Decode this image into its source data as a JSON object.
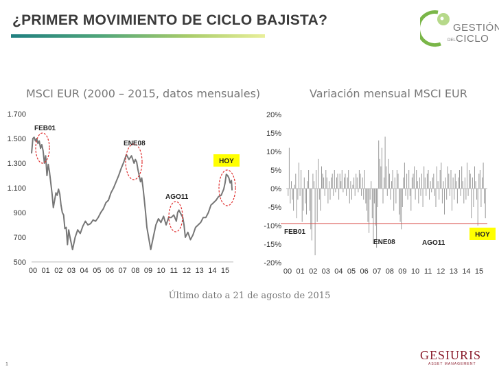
{
  "header": {
    "title": "¿PRIMER MOVIMIENTO DE CICLO BAJISTA?"
  },
  "logo": {
    "line1": "GESTIÓN",
    "del": "DEL",
    "line2": "CICLO",
    "accent": "#7ab648"
  },
  "footer": {
    "note": "Último dato a 21 de agosto de 2015",
    "page": "1",
    "brand": "GESIURIS",
    "brand_sub": "ASSET MANAGEMENT",
    "brand_color": "#8b1e2d"
  },
  "chart_data": [
    {
      "type": "line",
      "title": "MSCI EUR (2000 – 2015, datos mensuales)",
      "xlabel": "",
      "ylabel": "",
      "xlim": [
        0,
        15.75
      ],
      "ylim": [
        500,
        1700
      ],
      "yticks": [
        "500",
        "700",
        "900",
        "1.100",
        "1.300",
        "1.500",
        "1.700"
      ],
      "ytick_values": [
        500,
        700,
        900,
        1100,
        1300,
        1500,
        1700
      ],
      "xticks": [
        "00",
        "01",
        "02",
        "03",
        "04",
        "05",
        "06",
        "07",
        "08",
        "09",
        "10",
        "11",
        "12",
        "13",
        "14",
        "15"
      ],
      "grid": false,
      "color": "#777777",
      "series": [
        {
          "x": [
            0,
            0.1,
            0.2,
            0.3,
            0.4,
            0.5,
            0.6,
            0.7,
            0.8,
            0.9,
            1.0,
            1.1,
            1.2,
            1.3,
            1.4,
            1.5,
            1.6,
            1.7,
            1.8,
            1.9,
            2.0,
            2.1,
            2.2,
            2.3,
            2.4,
            2.5,
            2.6,
            2.7,
            2.8,
            2.9,
            3.0,
            3.2,
            3.4,
            3.6,
            3.8,
            4.0,
            4.2,
            4.4,
            4.6,
            4.8,
            5.0,
            5.2,
            5.4,
            5.6,
            5.8,
            6.0,
            6.2,
            6.4,
            6.6,
            6.8,
            7.0,
            7.2,
            7.4,
            7.6,
            7.8,
            8.0,
            8.1,
            8.2,
            8.3,
            8.4,
            8.5,
            8.6,
            8.7,
            8.8,
            8.9,
            9.0,
            9.1,
            9.3,
            9.5,
            9.7,
            9.9,
            10.1,
            10.3,
            10.5,
            10.7,
            10.9,
            11.1,
            11.3,
            11.4,
            11.5,
            11.6,
            11.7,
            11.8,
            11.9,
            12.0,
            12.2,
            12.4,
            12.6,
            12.8,
            13.0,
            13.2,
            13.4,
            13.6,
            13.8,
            14.0,
            14.2,
            14.4,
            14.6,
            14.8,
            15.0,
            15.1,
            15.2,
            15.3,
            15.4,
            15.5,
            15.6,
            15.65
          ],
          "y": [
            1380,
            1500,
            1510,
            1480,
            1500,
            1460,
            1480,
            1420,
            1450,
            1400,
            1300,
            1360,
            1200,
            1290,
            1230,
            1140,
            1050,
            940,
            1000,
            1060,
            1040,
            1090,
            1050,
            960,
            900,
            880,
            770,
            780,
            640,
            760,
            700,
            600,
            700,
            760,
            730,
            790,
            830,
            800,
            810,
            840,
            830,
            860,
            900,
            930,
            980,
            1000,
            1060,
            1100,
            1150,
            1200,
            1260,
            1310,
            1370,
            1330,
            1360,
            1300,
            1330,
            1310,
            1250,
            1200,
            1150,
            1180,
            1100,
            1000,
            900,
            780,
            720,
            600,
            700,
            800,
            850,
            820,
            870,
            800,
            860,
            860,
            880,
            830,
            900,
            920,
            900,
            880,
            860,
            800,
            700,
            740,
            680,
            720,
            780,
            800,
            820,
            860,
            860,
            900,
            960,
            980,
            1000,
            1030,
            1040,
            1090,
            1140,
            1210,
            1200,
            1180,
            1140,
            1160,
            1080
          ]
        }
      ],
      "annotations": [
        {
          "text": "FEB01",
          "x": 1.1,
          "y": 1410
        },
        {
          "text": "ENE08",
          "x": 8.0,
          "y": 1250
        },
        {
          "text": "AGO11",
          "x": 11.6,
          "y": 880
        },
        {
          "text": "HOY",
          "x": 15.3,
          "y": 1120,
          "highlight": "#ffff00"
        }
      ]
    },
    {
      "type": "bar",
      "title": "Variación mensual MSCI EUR",
      "xlabel": "",
      "ylabel": "",
      "xlim": [
        0,
        15.75
      ],
      "ylim": [
        -20,
        20
      ],
      "yticks": [
        "-20%",
        "-15%",
        "-10%",
        "-5%",
        "0%",
        "5%",
        "10%",
        "15%",
        "20%"
      ],
      "ytick_values": [
        -20,
        -15,
        -10,
        -5,
        0,
        5,
        10,
        15,
        20
      ],
      "xticks": [
        "00",
        "01",
        "02",
        "03",
        "04",
        "05",
        "06",
        "07",
        "08",
        "09",
        "10",
        "11",
        "12",
        "13",
        "14",
        "15"
      ],
      "reference_line": {
        "y": -9.5,
        "color": "#d9534f"
      },
      "grid": false,
      "color": "#999999",
      "values": [
        -2,
        11,
        -4,
        2,
        -3,
        -6,
        1,
        4,
        -8,
        -3,
        7,
        -2,
        5,
        -9,
        -6,
        3,
        -4,
        -7,
        2,
        5,
        -6,
        -11,
        -14,
        4,
        2,
        -18,
        5,
        -9,
        8,
        -3,
        -6,
        6,
        4,
        3,
        -2,
        5,
        3,
        -4,
        2,
        -3,
        3,
        4,
        -2,
        5,
        -1,
        3,
        4,
        -3,
        4,
        2,
        5,
        -1,
        3,
        4,
        -2,
        3,
        5,
        -4,
        2,
        -3,
        1,
        3,
        -2,
        4,
        3,
        -1,
        5,
        4,
        -2,
        3,
        -3,
        5,
        -4,
        -6,
        -9,
        -12,
        -3,
        2,
        -8,
        -15,
        -4,
        -10,
        -16,
        -5,
        13,
        8,
        6,
        11,
        -4,
        3,
        14,
        6,
        -2,
        8,
        4,
        -3,
        2,
        5,
        -6,
        3,
        -4,
        5,
        4,
        -7,
        -9,
        -11,
        -5,
        3,
        7,
        -2,
        4,
        -3,
        5,
        -2,
        -6,
        3,
        4,
        6,
        -3,
        5,
        2,
        -4,
        3,
        -2,
        4,
        -5,
        6,
        3,
        -2,
        4,
        5,
        -3,
        2,
        -1,
        3,
        4,
        -2,
        -5,
        6,
        2,
        -3,
        5,
        7,
        -4,
        2,
        -7,
        3,
        -3,
        6,
        4,
        -2,
        5,
        -6,
        3,
        -3,
        4,
        2,
        -4,
        3,
        5,
        -2,
        6,
        2,
        -4,
        3,
        -3,
        7,
        -2,
        5,
        4,
        -8,
        3,
        -5,
        6,
        2,
        -3,
        -10,
        4,
        5,
        -5,
        3,
        7,
        -4,
        -8
      ],
      "annotations": [
        {
          "text": "FEB01",
          "x": 0.9,
          "y": -12
        },
        {
          "text": "ENE08",
          "x": 7.9,
          "y": -15
        },
        {
          "text": "AGO11",
          "x": 11.7,
          "y": -15
        },
        {
          "text": "HOY",
          "x": 15.6,
          "y": -12,
          "highlight": "#ffff00"
        }
      ]
    }
  ]
}
